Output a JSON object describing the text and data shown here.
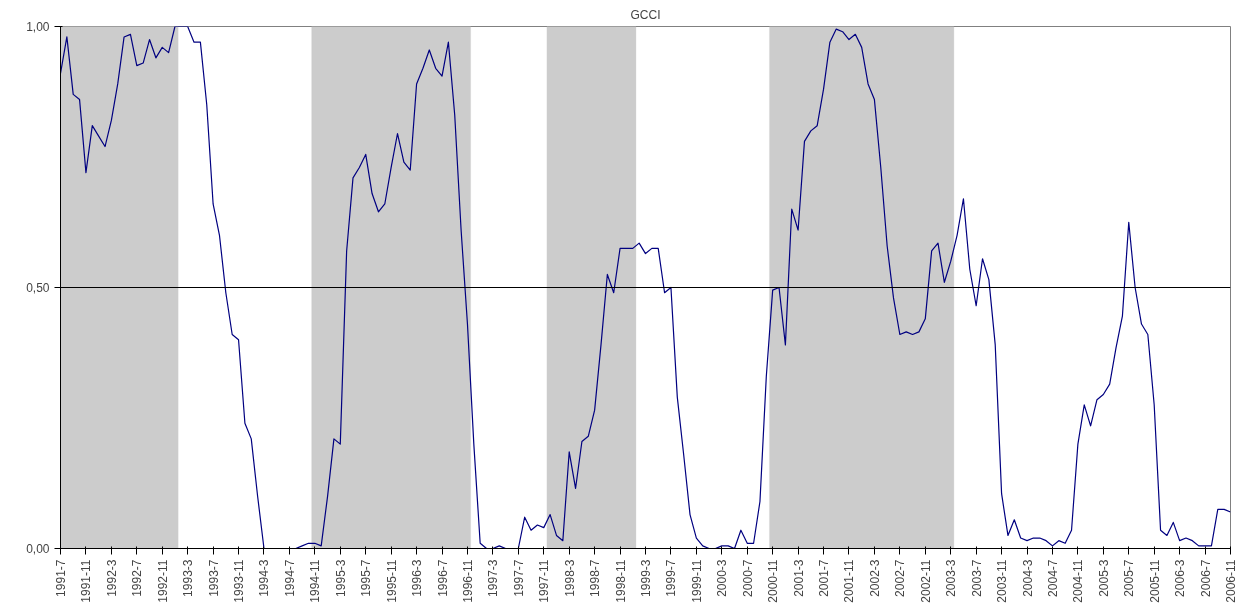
{
  "chart_data": {
    "type": "line",
    "title": "GCCI",
    "x": [
      "1991-07",
      "1991-08",
      "1991-09",
      "1991-10",
      "1991-11",
      "1991-12",
      "1992-01",
      "1992-02",
      "1992-03",
      "1992-04",
      "1992-05",
      "1992-06",
      "1992-07",
      "1992-08",
      "1992-09",
      "1992-10",
      "1992-11",
      "1992-12",
      "1993-01",
      "1993-02",
      "1993-03",
      "1993-04",
      "1993-05",
      "1993-06",
      "1993-07",
      "1993-08",
      "1993-09",
      "1993-10",
      "1993-11",
      "1993-12",
      "1994-01",
      "1994-02",
      "1994-03",
      "1994-04",
      "1994-05",
      "1994-06",
      "1994-07",
      "1994-08",
      "1994-09",
      "1994-10",
      "1994-11",
      "1994-12",
      "1995-01",
      "1995-02",
      "1995-03",
      "1995-04",
      "1995-05",
      "1995-06",
      "1995-07",
      "1995-08",
      "1995-09",
      "1995-10",
      "1995-11",
      "1995-12",
      "1996-01",
      "1996-02",
      "1996-03",
      "1996-04",
      "1996-05",
      "1996-06",
      "1996-07",
      "1996-08",
      "1996-09",
      "1996-10",
      "1996-11",
      "1996-12",
      "1997-01",
      "1997-02",
      "1997-03",
      "1997-04",
      "1997-05",
      "1997-06",
      "1997-07",
      "1997-08",
      "1997-09",
      "1997-10",
      "1997-11",
      "1997-12",
      "1998-01",
      "1998-02",
      "1998-03",
      "1998-04",
      "1998-05",
      "1998-06",
      "1998-07",
      "1998-08",
      "1998-09",
      "1998-10",
      "1998-11",
      "1998-12",
      "1999-01",
      "1999-02",
      "1999-03",
      "1999-04",
      "1999-05",
      "1999-06",
      "1999-07",
      "1999-08",
      "1999-09",
      "1999-10",
      "1999-11",
      "1999-12",
      "2000-01",
      "2000-02",
      "2000-03",
      "2000-04",
      "2000-05",
      "2000-06",
      "2000-07",
      "2000-08",
      "2000-09",
      "2000-10",
      "2000-11",
      "2000-12",
      "2001-01",
      "2001-02",
      "2001-03",
      "2001-04",
      "2001-05",
      "2001-06",
      "2001-07",
      "2001-08",
      "2001-09",
      "2001-10",
      "2001-11",
      "2001-12",
      "2002-01",
      "2002-02",
      "2002-03",
      "2002-04",
      "2002-05",
      "2002-06",
      "2002-07",
      "2002-08",
      "2002-09",
      "2002-10",
      "2002-11",
      "2002-12",
      "2003-01",
      "2003-02",
      "2003-03",
      "2003-04",
      "2003-05",
      "2003-06",
      "2003-07",
      "2003-08",
      "2003-09",
      "2003-10",
      "2003-11",
      "2003-12",
      "2004-01",
      "2004-02",
      "2004-03",
      "2004-04",
      "2004-05",
      "2004-06",
      "2004-07",
      "2004-08",
      "2004-09",
      "2004-10",
      "2004-11",
      "2004-12",
      "2005-01",
      "2005-02",
      "2005-03",
      "2005-04",
      "2005-05",
      "2005-06",
      "2005-07",
      "2005-08",
      "2005-09",
      "2005-10",
      "2005-11",
      "2005-12",
      "2006-01",
      "2006-02",
      "2006-03",
      "2006-04",
      "2006-05",
      "2006-06",
      "2006-07",
      "2006-08",
      "2006-09",
      "2006-10",
      "2006-11"
    ],
    "series": [
      {
        "color": "#000080",
        "values": [
          0.91,
          0.98,
          0.87,
          0.86,
          0.72,
          0.81,
          0.79,
          0.77,
          0.82,
          0.89,
          0.98,
          0.985,
          0.925,
          0.93,
          0.975,
          0.94,
          0.96,
          0.95,
          1.0,
          1.0,
          1.0,
          0.97,
          0.97,
          0.85,
          0.66,
          0.6,
          0.49,
          0.41,
          0.4,
          0.24,
          0.21,
          0.1,
          0.0,
          0.0,
          0.0,
          0.0,
          0.0,
          0.0,
          0.005,
          0.01,
          0.01,
          0.005,
          0.1,
          0.21,
          0.2,
          0.57,
          0.71,
          0.73,
          0.755,
          0.68,
          0.645,
          0.66,
          0.73,
          0.795,
          0.74,
          0.725,
          0.89,
          0.92,
          0.955,
          0.92,
          0.905,
          0.97,
          0.83,
          0.61,
          0.43,
          0.2,
          0.01,
          0.0,
          0.0,
          0.005,
          0.0,
          0.0,
          0.0,
          0.06,
          0.035,
          0.045,
          0.04,
          0.065,
          0.025,
          0.015,
          0.185,
          0.115,
          0.205,
          0.215,
          0.265,
          0.39,
          0.525,
          0.49,
          0.575,
          0.575,
          0.575,
          0.585,
          0.565,
          0.575,
          0.575,
          0.49,
          0.5,
          0.29,
          0.18,
          0.065,
          0.02,
          0.005,
          0.0,
          0.0,
          0.005,
          0.005,
          0.0,
          0.035,
          0.01,
          0.01,
          0.09,
          0.33,
          0.495,
          0.5,
          0.39,
          0.65,
          0.61,
          0.78,
          0.8,
          0.81,
          0.88,
          0.97,
          0.995,
          0.99,
          0.975,
          0.985,
          0.96,
          0.89,
          0.86,
          0.73,
          0.58,
          0.48,
          0.41,
          0.415,
          0.41,
          0.415,
          0.44,
          0.57,
          0.585,
          0.51,
          0.55,
          0.6,
          0.67,
          0.535,
          0.465,
          0.555,
          0.515,
          0.39,
          0.105,
          0.025,
          0.055,
          0.02,
          0.015,
          0.02,
          0.02,
          0.015,
          0.005,
          0.015,
          0.01,
          0.035,
          0.2,
          0.275,
          0.235,
          0.285,
          0.295,
          0.315,
          0.385,
          0.445,
          0.625,
          0.5,
          0.43,
          0.41,
          0.275,
          0.035,
          0.025,
          0.05,
          0.015,
          0.02,
          0.015,
          0.005,
          0.005,
          0.005,
          0.075,
          0.075,
          0.07
        ]
      }
    ],
    "xlim": [
      "1991-07",
      "2006-11"
    ],
    "xticks": [
      {
        "value": "1991-07",
        "label": "1991-7"
      },
      {
        "value": "1991-11",
        "label": "1991-11"
      },
      {
        "value": "1992-03",
        "label": "1992-3"
      },
      {
        "value": "1992-07",
        "label": "1992-7"
      },
      {
        "value": "1992-11",
        "label": "1992-11"
      },
      {
        "value": "1993-03",
        "label": "1993-3"
      },
      {
        "value": "1993-07",
        "label": "1993-7"
      },
      {
        "value": "1993-11",
        "label": "1993-11"
      },
      {
        "value": "1994-03",
        "label": "1994-3"
      },
      {
        "value": "1994-07",
        "label": "1994-7"
      },
      {
        "value": "1994-11",
        "label": "1994-11"
      },
      {
        "value": "1995-03",
        "label": "1995-3"
      },
      {
        "value": "1995-07",
        "label": "1995-7"
      },
      {
        "value": "1995-11",
        "label": "1995-11"
      },
      {
        "value": "1996-03",
        "label": "1996-3"
      },
      {
        "value": "1996-07",
        "label": "1996-7"
      },
      {
        "value": "1996-11",
        "label": "1996-11"
      },
      {
        "value": "1997-03",
        "label": "1997-3"
      },
      {
        "value": "1997-07",
        "label": "1997-7"
      },
      {
        "value": "1997-11",
        "label": "1997-11"
      },
      {
        "value": "1998-03",
        "label": "1998-3"
      },
      {
        "value": "1998-07",
        "label": "1998-7"
      },
      {
        "value": "1998-11",
        "label": "1998-11"
      },
      {
        "value": "1999-03",
        "label": "1999-3"
      },
      {
        "value": "1999-07",
        "label": "1999-7"
      },
      {
        "value": "1999-11",
        "label": "1999-11"
      },
      {
        "value": "2000-03",
        "label": "2000-3"
      },
      {
        "value": "2000-07",
        "label": "2000-7"
      },
      {
        "value": "2000-11",
        "label": "2000-11"
      },
      {
        "value": "2001-03",
        "label": "2001-3"
      },
      {
        "value": "2001-07",
        "label": "2001-7"
      },
      {
        "value": "2001-11",
        "label": "2001-11"
      },
      {
        "value": "2002-03",
        "label": "2002-3"
      },
      {
        "value": "2002-07",
        "label": "2002-7"
      },
      {
        "value": "2002-11",
        "label": "2002-11"
      },
      {
        "value": "2003-03",
        "label": "2003-3"
      },
      {
        "value": "2003-07",
        "label": "2003-7"
      },
      {
        "value": "2003-11",
        "label": "2003-11"
      },
      {
        "value": "2004-03",
        "label": "2004-3"
      },
      {
        "value": "2004-07",
        "label": "2004-7"
      },
      {
        "value": "2004-11",
        "label": "2004-11"
      },
      {
        "value": "2005-03",
        "label": "2005-3"
      },
      {
        "value": "2005-07",
        "label": "2005-7"
      },
      {
        "value": "2005-11",
        "label": "2005-11"
      },
      {
        "value": "2006-03",
        "label": "2006-3"
      },
      {
        "value": "2006-07",
        "label": "2006-7"
      },
      {
        "value": "2006-11",
        "label": "2006-11"
      }
    ],
    "ylim": [
      0,
      1
    ],
    "yticks": [
      {
        "value": 0,
        "label": "0,00"
      },
      {
        "value": 0.5,
        "label": "0,50"
      },
      {
        "value": 1,
        "label": "1,00"
      }
    ],
    "ref_lines": [
      {
        "axis": "y",
        "value": 0.5,
        "color": "#000000"
      }
    ],
    "bands": [
      {
        "axis": "x",
        "from": "1991-07",
        "to": "1993-01",
        "color": "#cccccc"
      },
      {
        "axis": "x",
        "from": "1994-11",
        "to": "1996-11",
        "color": "#cccccc"
      },
      {
        "axis": "x",
        "from": "1997-12",
        "to": "1999-01",
        "color": "#cccccc"
      },
      {
        "axis": "x",
        "from": "2000-11",
        "to": "2003-03",
        "color": "#cccccc"
      }
    ],
    "grid": false,
    "marker": "none",
    "line_style": "solid"
  }
}
